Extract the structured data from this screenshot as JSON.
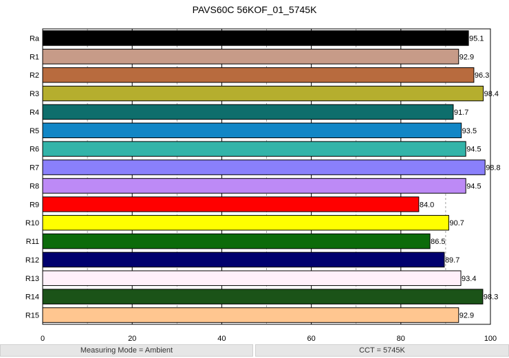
{
  "chart_data": {
    "type": "bar",
    "orientation": "horizontal",
    "title": "PAVS60C 56KOF_01_5745K",
    "categories": [
      "Ra",
      "R1",
      "R2",
      "R3",
      "R4",
      "R5",
      "R6",
      "R7",
      "R8",
      "R9",
      "R10",
      "R11",
      "R12",
      "R13",
      "R14",
      "R15"
    ],
    "values": [
      95.1,
      92.9,
      96.3,
      98.4,
      91.7,
      93.5,
      94.5,
      98.8,
      94.5,
      84.0,
      90.7,
      86.5,
      89.7,
      93.4,
      98.3,
      92.9
    ],
    "value_labels": [
      "95.1",
      "92.9",
      "96.3",
      "98.4",
      "91.7",
      "93.5",
      "94.5",
      "98.8",
      "94.5",
      "84.0",
      "90.7",
      "86.5",
      "89.7",
      "93.4",
      "98.3",
      "92.9"
    ],
    "colors": [
      "#000000",
      "#c79b88",
      "#b86b3e",
      "#b5ae2e",
      "#0e6e6c",
      "#1186c6",
      "#33b4a9",
      "#8a80fb",
      "#bd8af6",
      "#ff0000",
      "#ffff00",
      "#0c6b0a",
      "#00006e",
      "#fff0fa",
      "#1b5318",
      "#ffc690"
    ],
    "xticks": [
      "0",
      "20",
      "40",
      "60",
      "80",
      "100"
    ],
    "xlim": [
      0,
      100
    ],
    "grid": {
      "major_every": 20,
      "minor_every": 10
    },
    "xlabel": "",
    "ylabel": ""
  },
  "footer": {
    "left": "Measuring Mode = Ambient",
    "right": "CCT = 5745K"
  }
}
